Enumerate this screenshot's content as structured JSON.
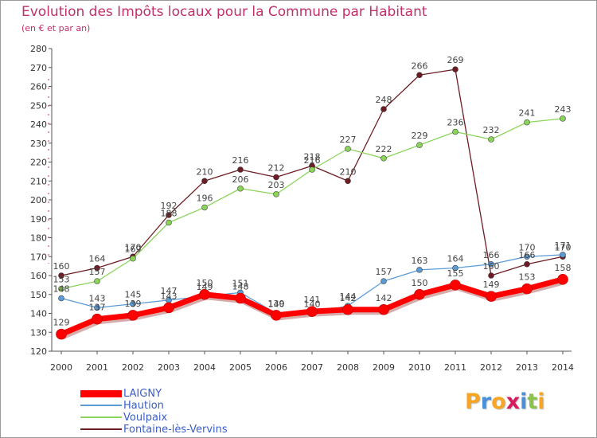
{
  "chart_data": {
    "type": "line",
    "title": "Evolution des Impôts locaux pour la Commune par Habitant",
    "subtitle": "(en € et par an)",
    "xlabel": "",
    "ylabel": "",
    "x": [
      "2000",
      "2001",
      "2002",
      "2003",
      "2004",
      "2005",
      "2006",
      "2007",
      "2008",
      "2009",
      "2010",
      "2011",
      "2012",
      "2013",
      "2014"
    ],
    "ylim": [
      120,
      280
    ],
    "yticks": [
      120,
      130,
      140,
      150,
      160,
      170,
      180,
      190,
      200,
      210,
      220,
      230,
      240,
      250,
      260,
      270,
      280
    ],
    "grid": false,
    "legend_position": "bottom-left",
    "series": [
      {
        "name": "LAIGNY",
        "color": "#ff0000",
        "values": [
          129,
          137,
          139,
          143,
          150,
          148,
          139,
          141,
          142,
          142,
          150,
          155,
          149,
          153,
          158
        ]
      },
      {
        "name": "Haution",
        "color": "#5b9bd5",
        "values": [
          148,
          143,
          145,
          147,
          149,
          151,
          140,
          140,
          144,
          157,
          163,
          164,
          166,
          170,
          171
        ]
      },
      {
        "name": "Voulpaix",
        "color": "#8bd45a",
        "values": [
          153,
          157,
          169,
          188,
          196,
          206,
          203,
          216,
          227,
          222,
          229,
          236,
          232,
          241,
          243
        ]
      },
      {
        "name": "Fontaine-lès-Vervins",
        "color": "#6e1c24",
        "values": [
          160,
          164,
          170,
          192,
          210,
          216,
          212,
          218,
          210,
          248,
          266,
          269,
          160,
          166,
          170
        ]
      }
    ],
    "data_labels": {
      "LAIGNY": [
        "129",
        "137",
        "139",
        "143",
        "150",
        "148",
        "139",
        "141",
        "142",
        "142",
        "150",
        "155",
        "149",
        "153",
        "158"
      ],
      "Haution": [
        "148",
        "143",
        "145",
        "147",
        "149",
        "151",
        "140",
        "140",
        "144",
        "157",
        "163",
        "164",
        "166",
        "170",
        "171"
      ],
      "Voulpaix": [
        "153",
        "157",
        "169",
        "188",
        "196",
        "206",
        "203",
        "216",
        "227",
        "222",
        "229",
        "236",
        "232",
        "241",
        "243"
      ],
      "Fontaine-lès-Vervins": [
        "160",
        "164",
        "170",
        "192",
        "210",
        "216",
        "212",
        "218",
        "210",
        "248",
        "266",
        "269",
        "160",
        "166",
        "170"
      ]
    }
  },
  "legend": {
    "items": [
      {
        "label": "LAIGNY",
        "color": "#ff0000"
      },
      {
        "label": "Haution",
        "color": "#5b9bd5"
      },
      {
        "label": "Voulpaix",
        "color": "#8bd45a"
      },
      {
        "label": "Fontaine-lès-Vervins",
        "color": "#6e1c24"
      }
    ]
  },
  "brand": {
    "letters": [
      "P",
      "r",
      "o",
      "x",
      "i",
      "t",
      "i"
    ],
    "colors": [
      "#f6a623",
      "#4a90d9",
      "#f6a623",
      "#d81b60",
      "#4a90d9",
      "#8bc34a",
      "#f6a623"
    ]
  }
}
